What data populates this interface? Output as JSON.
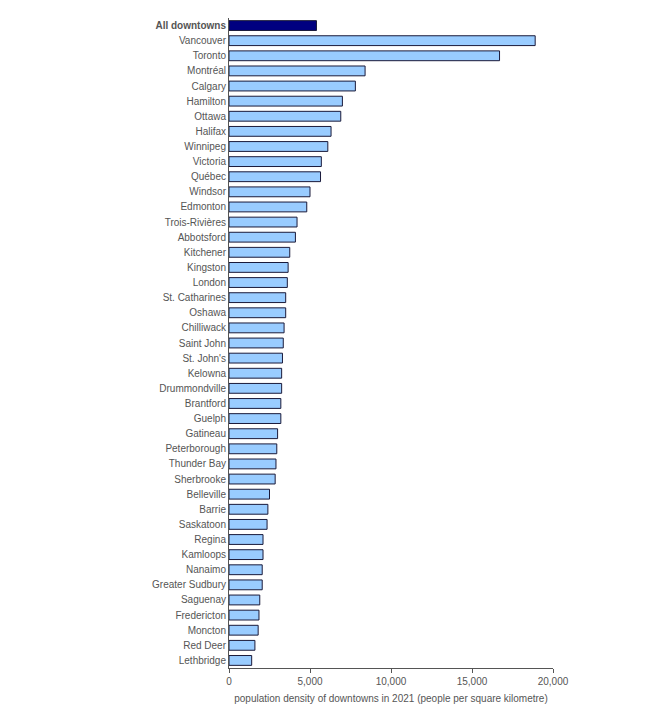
{
  "chart_data": {
    "type": "bar",
    "orientation": "horizontal",
    "x_label": "population density of downtowns in 2021 (people per square kilometre)",
    "categories": [
      "All downtowns",
      "Vancouver",
      "Toronto",
      "Montréal",
      "Calgary",
      "Hamilton",
      "Ottawa",
      "Halifax",
      "Winnipeg",
      "Victoria",
      "Québec",
      "Windsor",
      "Edmonton",
      "Trois-Rivières",
      "Abbotsford",
      "Kitchener",
      "Kingston",
      "London",
      "St. Catharines",
      "Oshawa",
      "Chilliwack",
      "Saint John",
      "St. John's",
      "Kelowna",
      "Drummondville",
      "Brantford",
      "Guelph",
      "Gatineau",
      "Peterborough",
      "Thunder Bay",
      "Sherbrooke",
      "Belleville",
      "Barrie",
      "Saskatoon",
      "Regina",
      "Kamloops",
      "Nanaimo",
      "Greater Sudbury",
      "Saguenay",
      "Fredericton",
      "Moncton",
      "Red Deer",
      "Lethbridge"
    ],
    "values": [
      5400,
      18900,
      16700,
      8400,
      7800,
      7000,
      6900,
      6300,
      6100,
      5700,
      5650,
      5000,
      4800,
      4200,
      4100,
      3750,
      3650,
      3600,
      3500,
      3500,
      3400,
      3350,
      3300,
      3250,
      3250,
      3200,
      3200,
      3000,
      2950,
      2900,
      2850,
      2500,
      2400,
      2350,
      2100,
      2100,
      2050,
      2050,
      1900,
      1850,
      1800,
      1600,
      1400
    ],
    "colors": [
      "#000080",
      "#99ccff",
      "#99ccff",
      "#99ccff",
      "#99ccff",
      "#99ccff",
      "#99ccff",
      "#99ccff",
      "#99ccff",
      "#99ccff",
      "#99ccff",
      "#99ccff",
      "#99ccff",
      "#99ccff",
      "#99ccff",
      "#99ccff",
      "#99ccff",
      "#99ccff",
      "#99ccff",
      "#99ccff",
      "#99ccff",
      "#99ccff",
      "#99ccff",
      "#99ccff",
      "#99ccff",
      "#99ccff",
      "#99ccff",
      "#99ccff",
      "#99ccff",
      "#99ccff",
      "#99ccff",
      "#99ccff",
      "#99ccff",
      "#99ccff",
      "#99ccff",
      "#99ccff",
      "#99ccff",
      "#99ccff",
      "#99ccff",
      "#99ccff",
      "#99ccff",
      "#99ccff",
      "#99ccff"
    ],
    "xlim": [
      0,
      20000
    ],
    "xticks": [
      0,
      {
        "value": 5000,
        "label": "5,000"
      },
      {
        "value": 10000,
        "label": "10,000"
      },
      {
        "value": 15000,
        "label": "15,000"
      },
      {
        "value": 20000,
        "label": "20,000"
      }
    ],
    "grid": false
  }
}
